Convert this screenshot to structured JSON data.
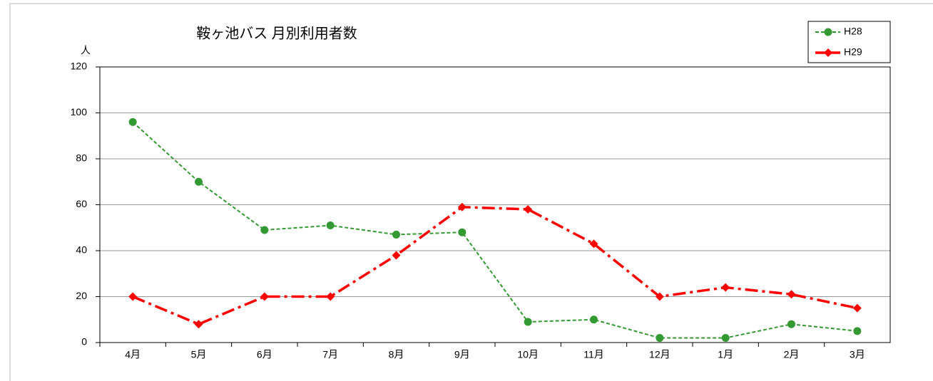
{
  "chart_data": {
    "type": "line",
    "title": "鞍ヶ池バス 月別利用者数",
    "y_label": "人",
    "categories": [
      "4月",
      "5月",
      "6月",
      "7月",
      "8月",
      "9月",
      "10月",
      "11月",
      "12月",
      "1月",
      "2月",
      "3月"
    ],
    "series": [
      {
        "name": "H28",
        "color": "#339933",
        "marker": "circle",
        "linestyle": "dashed",
        "values": [
          96,
          70,
          49,
          51,
          47,
          48,
          9,
          10,
          2,
          2,
          8,
          5
        ]
      },
      {
        "name": "H29",
        "color": "#ff0000",
        "marker": "diamond",
        "linestyle": "dashdot",
        "values": [
          20,
          8,
          20,
          20,
          38,
          59,
          58,
          43,
          20,
          24,
          21,
          15
        ]
      }
    ],
    "ylim": [
      0,
      120
    ],
    "yticks": [
      0,
      20,
      40,
      60,
      80,
      100,
      120
    ],
    "grid": true,
    "legend": "top-right"
  }
}
